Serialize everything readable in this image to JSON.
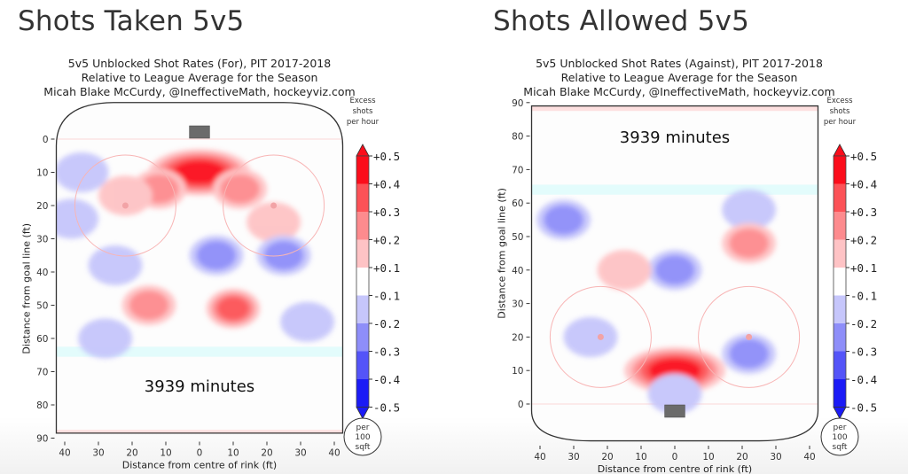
{
  "panels": [
    {
      "heading": "Shots Taken 5v5",
      "subtitle": [
        "5v5 Unblocked Shot Rates (For), PIT 2017-2018",
        "Relative to League Average for the Season",
        "Micah Blake McCurdy, @IneffectiveMath, hockeyviz.com"
      ],
      "minutes_label": "3939 minutes"
    },
    {
      "heading": "Shots Allowed 5v5",
      "subtitle": [
        "5v5 Unblocked Shot Rates (Against), PIT 2017-2018",
        "Relative to League Average for the Season",
        "Micah Blake McCurdy, @IneffectiveMath, hockeyviz.com"
      ],
      "minutes_label": "3939 minutes"
    }
  ],
  "colorbar": {
    "title": [
      "Excess",
      "shots",
      "per hour"
    ],
    "ticks": [
      "+0.5",
      "+0.4",
      "+0.3",
      "+0.2",
      "+0.1",
      "-0.1",
      "-0.2",
      "-0.3",
      "-0.4",
      "-0.5"
    ],
    "colors": [
      "#fb0d1b",
      "#fc5257",
      "#fd8b8e",
      "#fec3c5",
      "#ffffff",
      "#c6c6fb",
      "#8e8ef9",
      "#5454f8",
      "#1b1bf6"
    ],
    "unit_badge": [
      "per",
      "100",
      "sqft"
    ]
  },
  "chart_data": [
    {
      "type": "heatmap",
      "title": "5v5 Unblocked Shot Rates (For), PIT 2017-2018",
      "xlabel": "Distance from centre of rink (ft)",
      "ylabel": "Distance from goal line (ft)",
      "x_ticks": [
        "40",
        "30",
        "20",
        "10",
        "0",
        "10",
        "20",
        "30",
        "40"
      ],
      "y_ticks": [
        "0",
        "10",
        "20",
        "30",
        "40",
        "50",
        "60",
        "70",
        "80",
        "90"
      ],
      "xlim": [
        -42.5,
        42.5
      ],
      "ylim": [
        90,
        0
      ],
      "y_direction": "down",
      "colorbar_range": [
        -0.5,
        0.5
      ],
      "annotation": "3939 minutes",
      "regions": [
        {
          "x": 0,
          "y": 10,
          "level": 0.5,
          "note": "hot spot in front of net"
        },
        {
          "x": -12,
          "y": 15,
          "level": 0.3
        },
        {
          "x": 12,
          "y": 15,
          "level": 0.3
        },
        {
          "x": -22,
          "y": 17,
          "level": 0.2
        },
        {
          "x": 22,
          "y": 25,
          "level": 0.2
        },
        {
          "x": -35,
          "y": 10,
          "level": -0.2
        },
        {
          "x": -38,
          "y": 24,
          "level": -0.2
        },
        {
          "x": -25,
          "y": 38,
          "level": -0.2
        },
        {
          "x": 5,
          "y": 35,
          "level": -0.3
        },
        {
          "x": 25,
          "y": 35,
          "level": -0.3
        },
        {
          "x": -15,
          "y": 50,
          "level": 0.3
        },
        {
          "x": 10,
          "y": 51,
          "level": 0.4
        },
        {
          "x": -28,
          "y": 60,
          "level": -0.2
        },
        {
          "x": 32,
          "y": 55,
          "level": -0.2
        }
      ]
    },
    {
      "type": "heatmap",
      "title": "5v5 Unblocked Shot Rates (Against), PIT 2017-2018",
      "xlabel": "Distance from centre of rink (ft)",
      "ylabel": "Distance from goal line (ft)",
      "x_ticks": [
        "40",
        "30",
        "20",
        "10",
        "0",
        "10",
        "20",
        "30",
        "40"
      ],
      "y_ticks": [
        "90",
        "80",
        "70",
        "60",
        "50",
        "40",
        "30",
        "20",
        "10",
        "0"
      ],
      "xlim": [
        -42.5,
        42.5
      ],
      "ylim": [
        0,
        90
      ],
      "y_direction": "up",
      "colorbar_range": [
        -0.5,
        0.5
      ],
      "annotation": "3939 minutes",
      "regions": [
        {
          "x": -33,
          "y": 55,
          "level": -0.3
        },
        {
          "x": 0,
          "y": 40,
          "level": -0.3
        },
        {
          "x": 22,
          "y": 58,
          "level": -0.2
        },
        {
          "x": 22,
          "y": 48,
          "level": 0.3
        },
        {
          "x": -15,
          "y": 40,
          "level": 0.2
        },
        {
          "x": -25,
          "y": 20,
          "level": -0.2
        },
        {
          "x": 0,
          "y": 10,
          "level": 0.5,
          "note": "hot spot in front of net"
        },
        {
          "x": 22,
          "y": 15,
          "level": -0.3
        },
        {
          "x": 0,
          "y": 3,
          "level": -0.2
        }
      ]
    }
  ]
}
